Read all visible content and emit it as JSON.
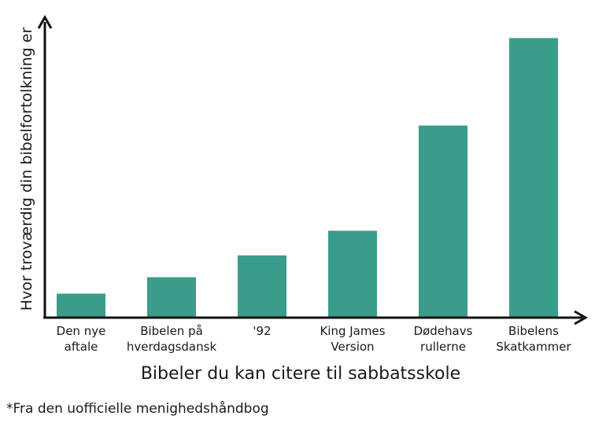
{
  "chart_data": {
    "type": "bar",
    "title": "",
    "categories": [
      [
        "Den nye",
        "aftale"
      ],
      [
        "Bibelen på",
        "hverdagsdansk"
      ],
      [
        "'92"
      ],
      [
        "King James",
        "Version"
      ],
      [
        "Dødehavs",
        "rullerne"
      ],
      [
        "Bibelens",
        "Skatkammer"
      ]
    ],
    "values": [
      8.5,
      14.5,
      22.5,
      31.5,
      70,
      102
    ],
    "ylim": [
      0,
      105
    ],
    "xlabel": "Bibeler du kan citere til sabbatsskole",
    "ylabel": "Hvor troværdig din bibelfortolkning er",
    "grid": false,
    "bar_color": "#3a9c8b",
    "axis_color": "#111111"
  },
  "footnote": "*Fra den uofficielle menighedshåndbog"
}
